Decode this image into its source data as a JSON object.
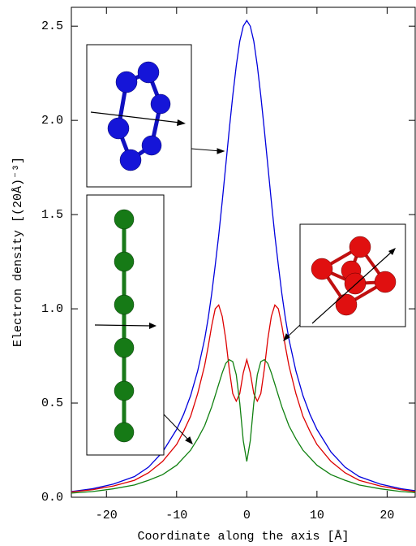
{
  "chart_data": {
    "type": "line",
    "xlabel": "Coordinate along the axis [Å]",
    "ylabel": "Electron density [(20Å)⁻³]",
    "x": [
      -25,
      -22,
      -19,
      -16,
      -14,
      -12,
      -10,
      -9,
      -8,
      -7,
      -6,
      -5.5,
      -5,
      -4.5,
      -4,
      -3.5,
      -3,
      -2.5,
      -2,
      -1.5,
      -1,
      -0.5,
      0,
      0.5,
      1,
      1.5,
      2,
      2.5,
      3,
      3.5,
      4,
      4.5,
      5,
      5.5,
      6,
      7,
      8,
      9,
      10,
      12,
      14,
      16,
      19,
      22,
      24
    ],
    "series": [
      {
        "color": "#0000dd",
        "values": [
          0.03,
          0.045,
          0.07,
          0.11,
          0.16,
          0.24,
          0.36,
          0.44,
          0.54,
          0.67,
          0.84,
          0.95,
          1.08,
          1.23,
          1.39,
          1.57,
          1.76,
          1.95,
          2.13,
          2.29,
          2.42,
          2.5,
          2.53,
          2.5,
          2.42,
          2.29,
          2.13,
          1.95,
          1.76,
          1.57,
          1.39,
          1.23,
          1.08,
          0.95,
          0.84,
          0.67,
          0.54,
          0.44,
          0.36,
          0.24,
          0.16,
          0.11,
          0.07,
          0.045,
          0.035
        ]
      },
      {
        "color": "#dd0000",
        "values": [
          0.028,
          0.04,
          0.06,
          0.09,
          0.13,
          0.19,
          0.28,
          0.35,
          0.43,
          0.55,
          0.7,
          0.8,
          0.91,
          1.0,
          1.02,
          0.96,
          0.84,
          0.68,
          0.55,
          0.51,
          0.55,
          0.66,
          0.73,
          0.66,
          0.55,
          0.51,
          0.55,
          0.68,
          0.84,
          0.96,
          1.02,
          1.0,
          0.91,
          0.8,
          0.7,
          0.55,
          0.43,
          0.35,
          0.28,
          0.19,
          0.13,
          0.09,
          0.06,
          0.04,
          0.03
        ]
      },
      {
        "color": "#108010",
        "values": [
          0.022,
          0.03,
          0.045,
          0.065,
          0.09,
          0.12,
          0.17,
          0.21,
          0.25,
          0.31,
          0.38,
          0.43,
          0.48,
          0.54,
          0.6,
          0.66,
          0.71,
          0.73,
          0.72,
          0.65,
          0.5,
          0.3,
          0.19,
          0.3,
          0.5,
          0.65,
          0.72,
          0.73,
          0.71,
          0.66,
          0.6,
          0.54,
          0.48,
          0.43,
          0.38,
          0.31,
          0.25,
          0.21,
          0.17,
          0.12,
          0.09,
          0.065,
          0.045,
          0.03,
          0.025
        ]
      }
    ],
    "xlim": [
      -25,
      24
    ],
    "xticks": [
      -20,
      -10,
      0,
      10,
      20
    ],
    "ylim": [
      0,
      2.6
    ],
    "yticks": [
      {
        "value": 0,
        "label": "0.0"
      },
      0.5,
      {
        "value": 1,
        "label": "1.0"
      },
      1.5,
      {
        "value": 2,
        "label": "2.0"
      },
      2.5
    ],
    "grid": false
  }
}
